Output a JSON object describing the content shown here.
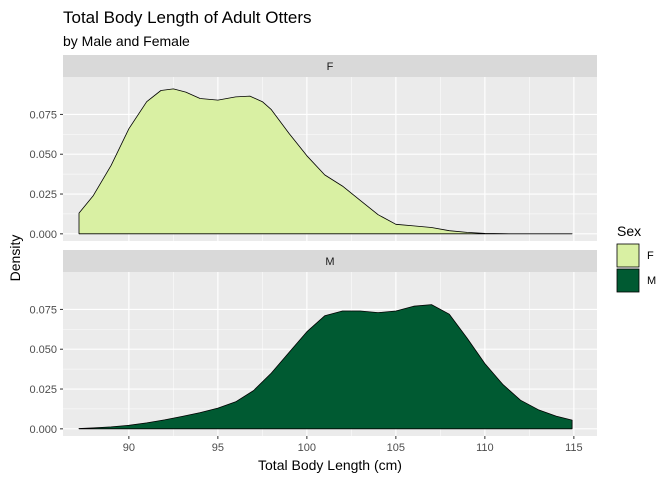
{
  "chart_data": {
    "type": "area",
    "subtype": "density",
    "title": "Total Body Length of Adult Otters",
    "subtitle": "by Male and Female",
    "xlabel": "Total Body Length (cm)",
    "ylabel": "Density",
    "xlim": [
      86.3,
      116.3
    ],
    "ylim": [
      -0.0045,
      0.0985
    ],
    "x_ticks": [
      90,
      95,
      100,
      105,
      110,
      115
    ],
    "x_tick_labels": [
      "90",
      "95",
      "100",
      "105",
      "110",
      "115"
    ],
    "y_ticks": [
      0.0,
      0.025,
      0.05,
      0.075
    ],
    "y_tick_labels": [
      "0.000",
      "0.025",
      "0.050",
      "0.075"
    ],
    "grid": true,
    "legend": {
      "title": "Sex",
      "position": "right",
      "items": [
        {
          "label": "F",
          "color": "#d9f0a3"
        },
        {
          "label": "M",
          "color": "#005a32"
        }
      ]
    },
    "panels": [
      {
        "strip": "F",
        "fill": "#d9f0a3",
        "x": [
          87.2,
          88.0,
          89.0,
          90.0,
          91.0,
          91.8,
          92.5,
          93.2,
          94.0,
          95.0,
          96.0,
          96.8,
          97.5,
          98.0,
          99.0,
          100.0,
          101.0,
          102.0,
          103.0,
          104.0,
          105.0,
          106.0,
          107.0,
          108.0,
          109.0,
          110.0,
          111.0,
          112.0,
          113.0,
          114.0,
          114.9
        ],
        "y": [
          0.013,
          0.024,
          0.043,
          0.066,
          0.083,
          0.09,
          0.091,
          0.089,
          0.085,
          0.084,
          0.086,
          0.0865,
          0.083,
          0.078,
          0.063,
          0.049,
          0.037,
          0.03,
          0.021,
          0.012,
          0.006,
          0.005,
          0.004,
          0.002,
          0.0009,
          0.0003,
          0.0001,
          0.0,
          0.0,
          0.0,
          0.0
        ]
      },
      {
        "strip": "M",
        "fill": "#005a32",
        "x": [
          87.2,
          88.0,
          89.0,
          90.0,
          91.0,
          92.0,
          93.0,
          94.0,
          95.0,
          96.0,
          97.0,
          98.0,
          99.0,
          100.0,
          101.0,
          102.0,
          103.0,
          104.0,
          105.0,
          106.0,
          107.0,
          108.0,
          109.0,
          110.0,
          111.0,
          112.0,
          113.0,
          114.0,
          114.9
        ],
        "y": [
          0.0002,
          0.0006,
          0.0012,
          0.0022,
          0.0037,
          0.0056,
          0.0078,
          0.0102,
          0.013,
          0.017,
          0.024,
          0.035,
          0.048,
          0.061,
          0.071,
          0.074,
          0.074,
          0.073,
          0.074,
          0.077,
          0.078,
          0.072,
          0.057,
          0.041,
          0.028,
          0.018,
          0.012,
          0.008,
          0.0055
        ]
      }
    ]
  }
}
